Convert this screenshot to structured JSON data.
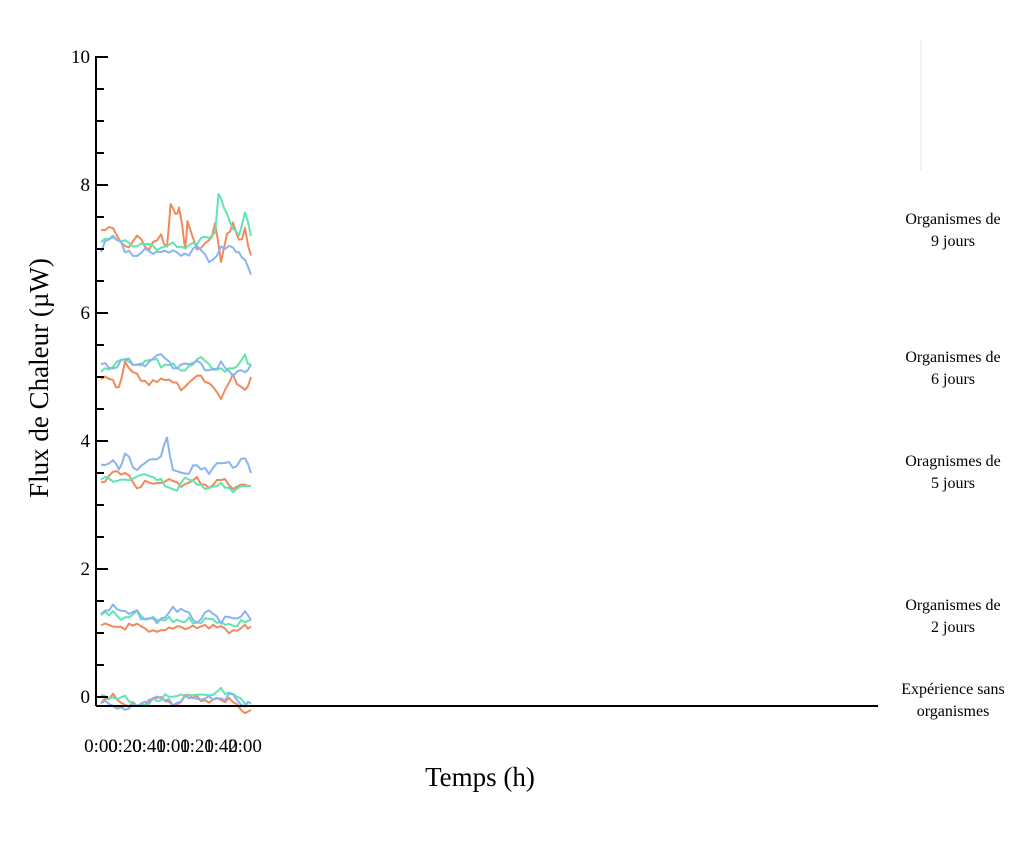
{
  "chart_data": {
    "type": "line",
    "title": "",
    "xlabel": "Temps (h)",
    "ylabel": "Flux de Chaleur (µW)",
    "xlim": [
      "0:00",
      "2:05"
    ],
    "ylim": [
      0,
      10
    ],
    "x_ticks": [
      "0:00",
      "0:20",
      "0:40",
      "1:00",
      "1:20",
      "1:40",
      "2:00"
    ],
    "y_ticks": [
      "0",
      "2",
      "4",
      "6",
      "8",
      "10"
    ],
    "grid": false,
    "colors": {
      "orange": "#F08A5D",
      "green": "#5EE6B0",
      "blue": "#8AB4F0"
    },
    "groups": [
      {
        "label_lines": [
          "Organismes de",
          "9 jours"
        ],
        "series": [
          {
            "color": "orange",
            "points": [
              [
                "0:00",
                7.3
              ],
              [
                "0:10",
                7.3
              ],
              [
                "0:20",
                7.0
              ],
              [
                "0:30",
                7.2
              ],
              [
                "0:40",
                7.0
              ],
              [
                "0:50",
                7.2
              ],
              [
                "0:55",
                7.0
              ],
              [
                "0:58",
                7.7
              ],
              [
                "1:02",
                7.5
              ],
              [
                "1:05",
                7.7
              ],
              [
                "1:10",
                7.0
              ],
              [
                "1:12",
                7.4
              ],
              [
                "1:20",
                7.0
              ],
              [
                "1:30",
                7.1
              ],
              [
                "1:35",
                7.4
              ],
              [
                "1:40",
                6.8
              ],
              [
                "1:45",
                7.2
              ],
              [
                "1:50",
                7.4
              ],
              [
                "1:55",
                7.1
              ],
              [
                "2:00",
                7.3
              ],
              [
                "2:05",
                6.9
              ]
            ]
          },
          {
            "color": "green",
            "points": [
              [
                "0:00",
                7.1
              ],
              [
                "0:10",
                7.2
              ],
              [
                "0:20",
                7.1
              ],
              [
                "0:30",
                7.0
              ],
              [
                "0:40",
                7.1
              ],
              [
                "0:50",
                7.0
              ],
              [
                "1:00",
                7.1
              ],
              [
                "1:10",
                7.0
              ],
              [
                "1:20",
                7.1
              ],
              [
                "1:30",
                7.2
              ],
              [
                "1:35",
                7.3
              ],
              [
                "1:38",
                7.9
              ],
              [
                "1:40",
                7.8
              ],
              [
                "1:45",
                7.5
              ],
              [
                "1:50",
                7.3
              ],
              [
                "1:55",
                7.2
              ],
              [
                "2:00",
                7.6
              ],
              [
                "2:05",
                7.2
              ]
            ]
          },
          {
            "color": "blue",
            "points": [
              [
                "0:00",
                7.0
              ],
              [
                "0:10",
                7.2
              ],
              [
                "0:20",
                7.0
              ],
              [
                "0:30",
                6.9
              ],
              [
                "0:40",
                7.0
              ],
              [
                "0:50",
                6.9
              ],
              [
                "1:00",
                7.0
              ],
              [
                "1:10",
                6.9
              ],
              [
                "1:20",
                7.0
              ],
              [
                "1:30",
                6.8
              ],
              [
                "1:40",
                7.0
              ],
              [
                "1:50",
                7.0
              ],
              [
                "1:55",
                6.9
              ],
              [
                "2:00",
                6.8
              ],
              [
                "2:05",
                6.6
              ]
            ]
          }
        ]
      },
      {
        "label_lines": [
          "Organismes de",
          "6 jours"
        ],
        "series": [
          {
            "color": "orange",
            "points": [
              [
                "0:00",
                5.0
              ],
              [
                "0:10",
                4.9
              ],
              [
                "0:15",
                4.8
              ],
              [
                "0:20",
                5.2
              ],
              [
                "0:30",
                5.0
              ],
              [
                "0:40",
                4.9
              ],
              [
                "0:50",
                5.0
              ],
              [
                "1:00",
                4.9
              ],
              [
                "1:10",
                4.8
              ],
              [
                "1:20",
                5.0
              ],
              [
                "1:30",
                4.9
              ],
              [
                "1:40",
                4.7
              ],
              [
                "1:50",
                5.0
              ],
              [
                "2:00",
                4.8
              ],
              [
                "2:05",
                5.0
              ]
            ]
          },
          {
            "color": "green",
            "points": [
              [
                "0:00",
                5.1
              ],
              [
                "0:10",
                5.2
              ],
              [
                "0:20",
                5.3
              ],
              [
                "0:30",
                5.2
              ],
              [
                "0:40",
                5.3
              ],
              [
                "0:50",
                5.2
              ],
              [
                "1:00",
                5.2
              ],
              [
                "1:10",
                5.1
              ],
              [
                "1:20",
                5.3
              ],
              [
                "1:30",
                5.2
              ],
              [
                "1:40",
                5.1
              ],
              [
                "1:50",
                5.1
              ],
              [
                "2:00",
                5.3
              ],
              [
                "2:05",
                5.2
              ]
            ]
          },
          {
            "color": "blue",
            "points": [
              [
                "0:00",
                5.2
              ],
              [
                "0:10",
                5.1
              ],
              [
                "0:20",
                5.3
              ],
              [
                "0:30",
                5.2
              ],
              [
                "0:40",
                5.2
              ],
              [
                "0:50",
                5.4
              ],
              [
                "1:00",
                5.1
              ],
              [
                "1:10",
                5.2
              ],
              [
                "1:20",
                5.2
              ],
              [
                "1:30",
                5.1
              ],
              [
                "1:40",
                5.2
              ],
              [
                "1:50",
                5.0
              ],
              [
                "2:00",
                5.1
              ],
              [
                "2:05",
                5.2
              ]
            ]
          }
        ]
      },
      {
        "label_lines": [
          "Oragnismes de",
          "5 jours"
        ],
        "series": [
          {
            "color": "orange",
            "points": [
              [
                "0:00",
                3.3
              ],
              [
                "0:10",
                3.5
              ],
              [
                "0:20",
                3.5
              ],
              [
                "0:30",
                3.3
              ],
              [
                "0:40",
                3.4
              ],
              [
                "0:50",
                3.3
              ],
              [
                "1:00",
                3.4
              ],
              [
                "1:10",
                3.3
              ],
              [
                "1:20",
                3.4
              ],
              [
                "1:30",
                3.3
              ],
              [
                "1:40",
                3.4
              ],
              [
                "1:50",
                3.3
              ],
              [
                "2:00",
                3.3
              ],
              [
                "2:05",
                3.3
              ]
            ]
          },
          {
            "color": "green",
            "points": [
              [
                "0:00",
                3.4
              ],
              [
                "0:10",
                3.4
              ],
              [
                "0:20",
                3.4
              ],
              [
                "0:30",
                3.4
              ],
              [
                "0:40",
                3.5
              ],
              [
                "0:50",
                3.4
              ],
              [
                "1:00",
                3.2
              ],
              [
                "1:10",
                3.4
              ],
              [
                "1:20",
                3.3
              ],
              [
                "1:30",
                3.3
              ],
              [
                "1:40",
                3.3
              ],
              [
                "1:50",
                3.2
              ],
              [
                "2:00",
                3.3
              ],
              [
                "2:05",
                3.3
              ]
            ]
          },
          {
            "color": "blue",
            "points": [
              [
                "0:00",
                3.6
              ],
              [
                "0:10",
                3.7
              ],
              [
                "0:15",
                3.5
              ],
              [
                "0:20",
                3.8
              ],
              [
                "0:30",
                3.5
              ],
              [
                "0:40",
                3.7
              ],
              [
                "0:50",
                3.8
              ],
              [
                "0:55",
                4.0
              ],
              [
                "1:00",
                3.6
              ],
              [
                "1:10",
                3.5
              ],
              [
                "1:20",
                3.6
              ],
              [
                "1:30",
                3.5
              ],
              [
                "1:40",
                3.7
              ],
              [
                "1:50",
                3.6
              ],
              [
                "2:00",
                3.7
              ],
              [
                "2:05",
                3.5
              ]
            ]
          }
        ]
      },
      {
        "label_lines": [
          "Organismes de",
          "2 jours"
        ],
        "series": [
          {
            "color": "orange",
            "points": [
              [
                "0:00",
                1.1
              ],
              [
                "0:10",
                1.1
              ],
              [
                "0:20",
                1.1
              ],
              [
                "0:30",
                1.1
              ],
              [
                "0:40",
                1.0
              ],
              [
                "0:50",
                1.0
              ],
              [
                "1:00",
                1.1
              ],
              [
                "1:10",
                1.1
              ],
              [
                "1:20",
                1.1
              ],
              [
                "1:30",
                1.1
              ],
              [
                "1:40",
                1.1
              ],
              [
                "1:50",
                1.0
              ],
              [
                "2:00",
                1.1
              ],
              [
                "2:05",
                1.1
              ]
            ]
          },
          {
            "color": "green",
            "points": [
              [
                "0:00",
                1.3
              ],
              [
                "0:10",
                1.3
              ],
              [
                "0:20",
                1.2
              ],
              [
                "0:30",
                1.3
              ],
              [
                "0:40",
                1.2
              ],
              [
                "0:50",
                1.2
              ],
              [
                "1:00",
                1.2
              ],
              [
                "1:10",
                1.2
              ],
              [
                "1:20",
                1.2
              ],
              [
                "1:30",
                1.2
              ],
              [
                "1:40",
                1.2
              ],
              [
                "1:50",
                1.1
              ],
              [
                "2:00",
                1.2
              ],
              [
                "2:05",
                1.2
              ]
            ]
          },
          {
            "color": "blue",
            "points": [
              [
                "0:00",
                1.3
              ],
              [
                "0:10",
                1.4
              ],
              [
                "0:20",
                1.3
              ],
              [
                "0:30",
                1.3
              ],
              [
                "0:40",
                1.2
              ],
              [
                "0:50",
                1.2
              ],
              [
                "1:00",
                1.4
              ],
              [
                "1:10",
                1.3
              ],
              [
                "1:20",
                1.2
              ],
              [
                "1:30",
                1.3
              ],
              [
                "1:40",
                1.2
              ],
              [
                "1:50",
                1.2
              ],
              [
                "2:00",
                1.3
              ],
              [
                "2:05",
                1.2
              ]
            ]
          }
        ]
      },
      {
        "label_lines": [
          "Expérience sans",
          "organismes"
        ],
        "series": [
          {
            "color": "orange",
            "points": [
              [
                "0:00",
                -0.1
              ],
              [
                "0:10",
                0.0
              ],
              [
                "0:20",
                -0.1
              ],
              [
                "0:30",
                -0.1
              ],
              [
                "0:40",
                -0.1
              ],
              [
                "0:50",
                0.0
              ],
              [
                "1:00",
                -0.1
              ],
              [
                "1:10",
                0.0
              ],
              [
                "1:20",
                0.0
              ],
              [
                "1:30",
                -0.1
              ],
              [
                "1:40",
                0.0
              ],
              [
                "1:50",
                -0.1
              ],
              [
                "2:00",
                -0.2
              ],
              [
                "2:05",
                -0.2
              ]
            ]
          },
          {
            "color": "green",
            "points": [
              [
                "0:00",
                0.0
              ],
              [
                "0:10",
                0.0
              ],
              [
                "0:20",
                0.0
              ],
              [
                "0:30",
                -0.1
              ],
              [
                "0:40",
                -0.1
              ],
              [
                "0:50",
                0.0
              ],
              [
                "1:00",
                0.0
              ],
              [
                "1:10",
                0.0
              ],
              [
                "1:20",
                0.0
              ],
              [
                "1:30",
                0.0
              ],
              [
                "1:40",
                0.1
              ],
              [
                "1:50",
                0.0
              ],
              [
                "2:00",
                -0.1
              ],
              [
                "2:05",
                -0.1
              ]
            ]
          },
          {
            "color": "blue",
            "points": [
              [
                "0:00",
                -0.1
              ],
              [
                "0:10",
                -0.1
              ],
              [
                "0:20",
                -0.2
              ],
              [
                "0:30",
                -0.1
              ],
              [
                "0:40",
                -0.1
              ],
              [
                "0:50",
                0.0
              ],
              [
                "1:00",
                -0.1
              ],
              [
                "1:10",
                0.0
              ],
              [
                "1:20",
                0.0
              ],
              [
                "1:30",
                0.0
              ],
              [
                "1:40",
                0.0
              ],
              [
                "1:50",
                0.0
              ],
              [
                "2:00",
                -0.1
              ],
              [
                "2:05",
                -0.1
              ]
            ]
          }
        ]
      }
    ]
  }
}
